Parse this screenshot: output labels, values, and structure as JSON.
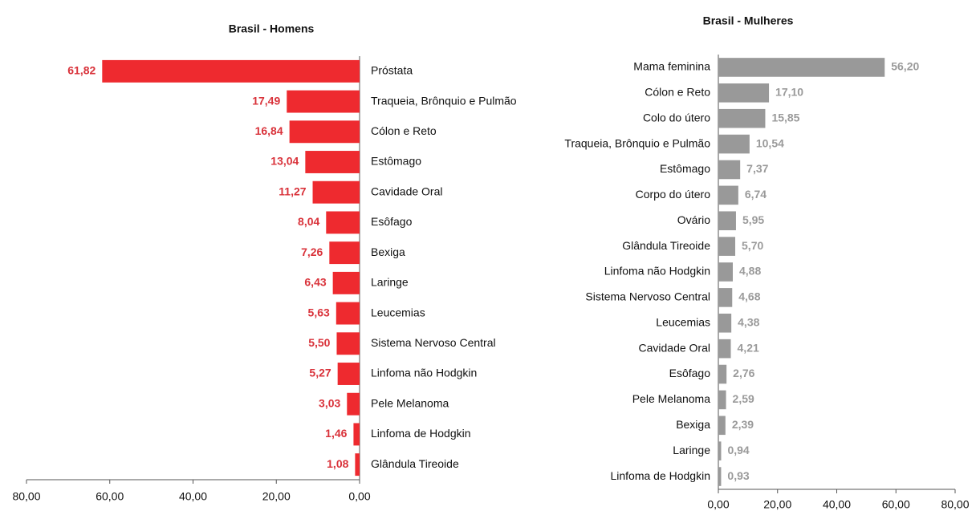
{
  "chart_data": [
    {
      "type": "bar",
      "title": "Brasil - Homens",
      "color": "#ee2a2f",
      "label_color": "#d9323a",
      "categories": [
        "Próstata",
        "Traqueia, Brônquio e Pulmão",
        "Cólon e Reto",
        "Estômago",
        "Cavidade Oral",
        "Esôfago",
        "Bexiga",
        "Laringe",
        "Leucemias",
        "Sistema Nervoso Central",
        "Linfoma não Hodgkin",
        "Pele Melanoma",
        "Linfoma de Hodgkin",
        "Glândula Tireoide"
      ],
      "values": [
        61.82,
        17.49,
        16.84,
        13.04,
        11.27,
        8.04,
        7.26,
        6.43,
        5.63,
        5.5,
        5.27,
        3.03,
        1.46,
        1.08
      ],
      "value_labels": [
        "61,82",
        "17,49",
        "16,84",
        "13,04",
        "11,27",
        "8,04",
        "7,26",
        "6,43",
        "5,63",
        "5,50",
        "5,27",
        "3,03",
        "1,46",
        "1,08"
      ],
      "xlim": [
        80,
        0
      ],
      "xticks": [
        {
          "value": 80,
          "label": "80,00"
        },
        {
          "value": 60,
          "label": "60,00"
        },
        {
          "value": 40,
          "label": "40,00"
        },
        {
          "value": 20,
          "label": "20,00"
        },
        {
          "value": 0,
          "label": "0,00"
        }
      ]
    },
    {
      "type": "bar",
      "title": "Brasil - Mulheres",
      "color": "#999999",
      "label_color": "#9a9a9a",
      "categories": [
        "Mama feminina",
        "Cólon e Reto",
        "Colo do útero",
        "Traqueia, Brônquio e Pulmão",
        "Estômago",
        "Corpo do útero",
        "Ovário",
        "Glândula Tireoide",
        "Linfoma não Hodgkin",
        "Sistema Nervoso Central",
        "Leucemias",
        "Cavidade Oral",
        "Esôfago",
        "Pele Melanoma",
        "Bexiga",
        "Laringe",
        "Linfoma de Hodgkin"
      ],
      "values": [
        56.2,
        17.1,
        15.85,
        10.54,
        7.37,
        6.74,
        5.95,
        5.7,
        4.88,
        4.68,
        4.38,
        4.21,
        2.76,
        2.59,
        2.39,
        0.94,
        0.93
      ],
      "value_labels": [
        "56,20",
        "17,10",
        "15,85",
        "10,54",
        "7,37",
        "6,74",
        "5,95",
        "5,70",
        "4,88",
        "4,68",
        "4,38",
        "4,21",
        "2,76",
        "2,59",
        "2,39",
        "0,94",
        "0,93"
      ],
      "xlim": [
        0,
        80
      ],
      "xticks": [
        {
          "value": 0,
          "label": "0,00"
        },
        {
          "value": 20,
          "label": "20,00"
        },
        {
          "value": 40,
          "label": "40,00"
        },
        {
          "value": 60,
          "label": "60,00"
        },
        {
          "value": 80,
          "label": "80,00"
        }
      ]
    }
  ]
}
